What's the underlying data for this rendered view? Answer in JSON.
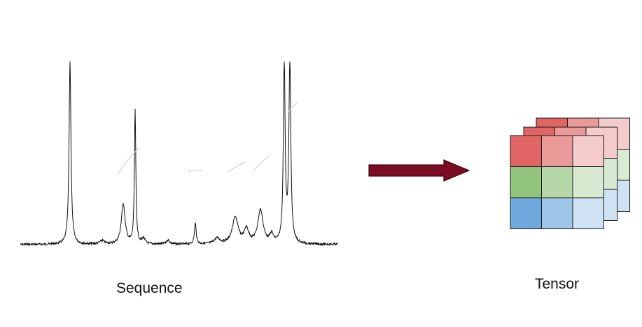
{
  "labels": {
    "sequence": "Sequence",
    "tensor": "Tensor"
  },
  "colors": {
    "spectrum_line": "#111111",
    "arrow_fill": "#7b0c23",
    "arrow_stroke": "#3d0410",
    "grid_lines": "#1a1a1a",
    "tensor_rows": [
      [
        "#e06666",
        "#ea9999",
        "#f4cccc"
      ],
      [
        "#93c47d",
        "#b6d7a8",
        "#d9ead3"
      ],
      [
        "#6fa8dc",
        "#9fc5e8",
        "#cfe2f3"
      ]
    ]
  },
  "icons": {
    "left": "spectrum-sequence-icon",
    "middle": "right-arrow-icon",
    "right": "tensor-stack-icon"
  }
}
